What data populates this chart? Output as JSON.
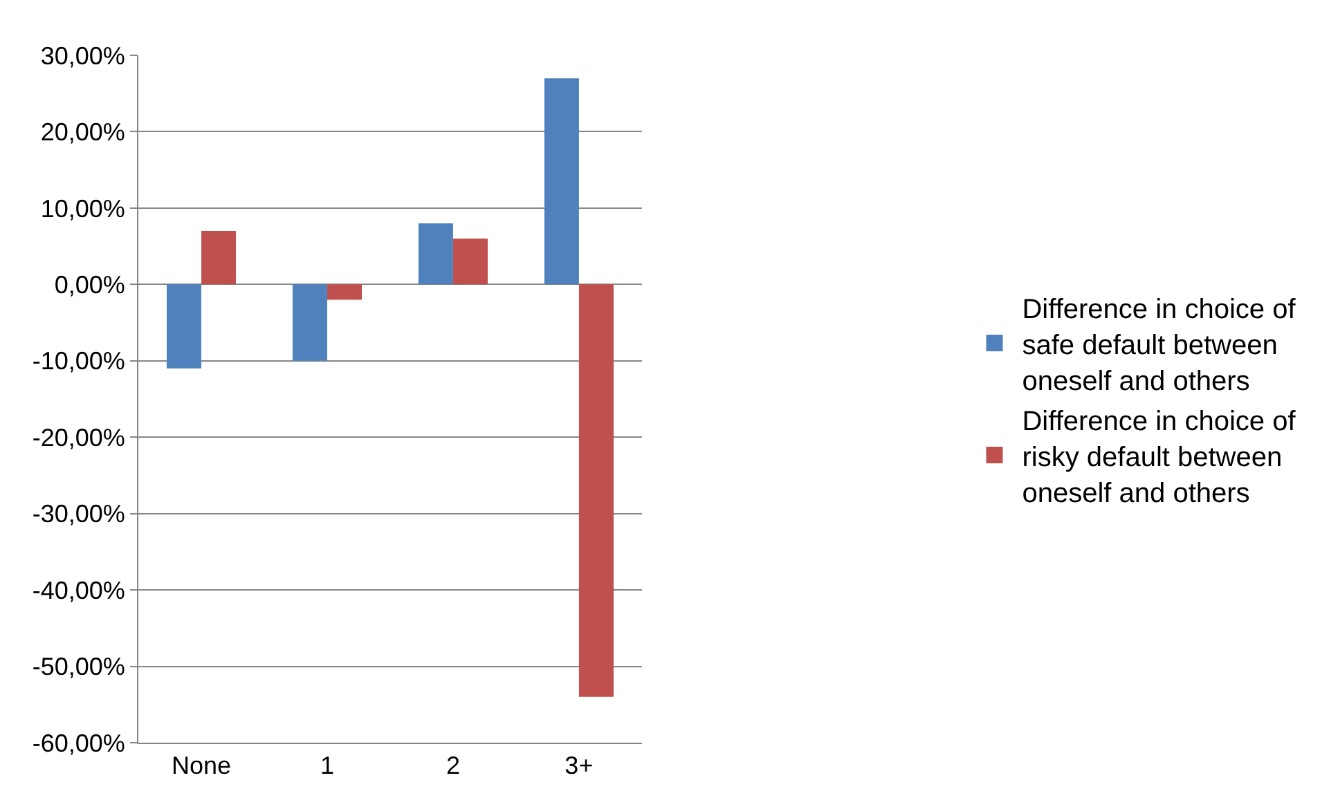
{
  "chart_data": {
    "type": "bar",
    "categories": [
      "None",
      "1",
      "2",
      "3+"
    ],
    "series": [
      {
        "name": "Difference in choice of safe default between oneself and others",
        "color": "#4f81bd",
        "values": [
          -11,
          -10,
          8,
          27
        ]
      },
      {
        "name": "Difference in choice of risky default between oneself and others",
        "color": "#c0504d",
        "values": [
          7,
          -2,
          6,
          -54
        ]
      }
    ],
    "ylim": [
      -60,
      30
    ],
    "yticks": [
      {
        "value": -60,
        "label": "-60,00%"
      },
      {
        "value": -50,
        "label": "-50,00%"
      },
      {
        "value": -40,
        "label": "-40,00%"
      },
      {
        "value": -30,
        "label": "-30,00%"
      },
      {
        "value": -20,
        "label": "-20,00%"
      },
      {
        "value": -10,
        "label": "-10,00%"
      },
      {
        "value": 0,
        "label": "0,00%"
      },
      {
        "value": 10,
        "label": "10,00%"
      },
      {
        "value": 20,
        "label": "20,00%"
      },
      {
        "value": 30,
        "label": "30,00%"
      }
    ],
    "grid": "y",
    "legend": "right"
  }
}
